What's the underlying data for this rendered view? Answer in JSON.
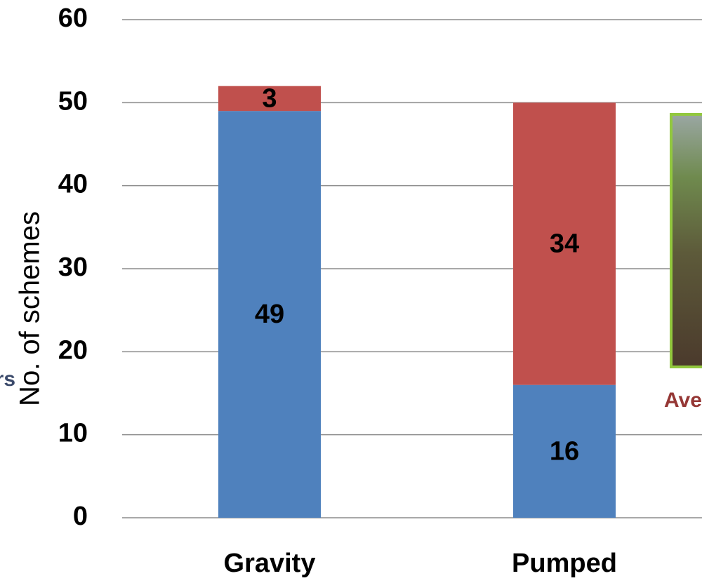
{
  "chart_data": {
    "type": "stacked-bar",
    "y_axis_label": "No. of schemes",
    "categories": [
      "Gravity",
      "Pumped"
    ],
    "series": [
      {
        "color": "#4f81bd",
        "values": [
          49,
          16
        ]
      },
      {
        "color": "#c0504d",
        "values": [
          3,
          34
        ]
      }
    ],
    "ylim": [
      0,
      60
    ],
    "yticks": [
      0,
      10,
      20,
      30,
      40,
      50,
      60
    ],
    "grid": true,
    "annotations": [
      "rs",
      "Ave"
    ]
  }
}
